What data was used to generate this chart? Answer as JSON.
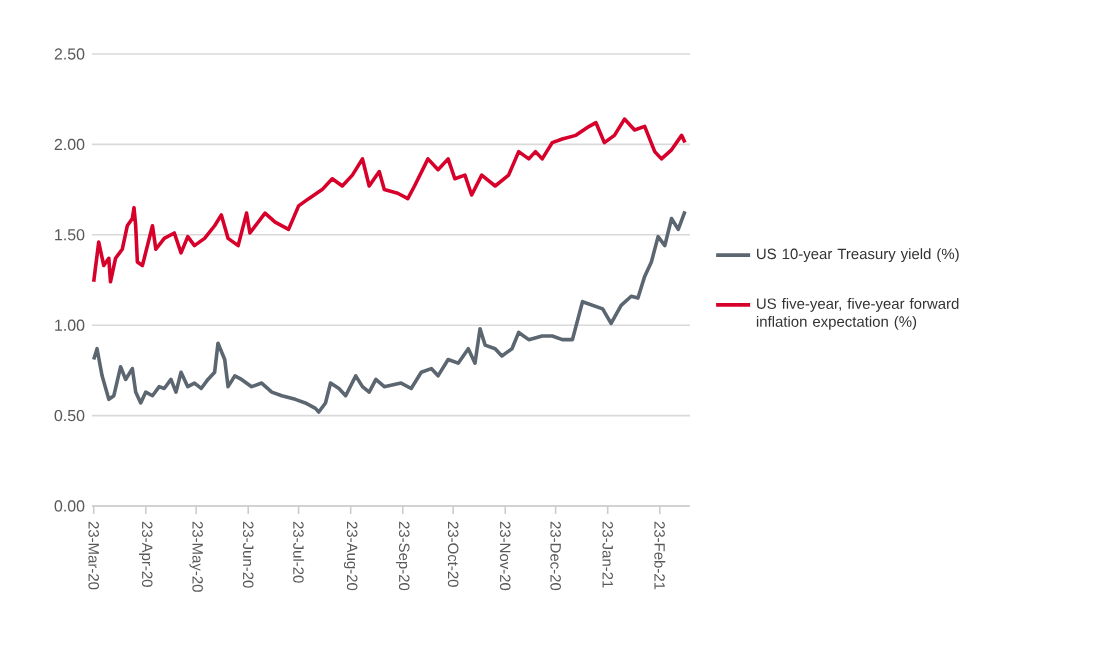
{
  "chart_data": {
    "type": "line",
    "xlim": [
      "2020-03-22",
      "2021-03-13"
    ],
    "xticks": [
      {
        "value": "2020-03-23",
        "label": "23-Mar-20"
      },
      {
        "value": "2020-04-23",
        "label": "23-Apr-20"
      },
      {
        "value": "2020-05-23",
        "label": "23-May-20"
      },
      {
        "value": "2020-06-23",
        "label": "23-Jun-20"
      },
      {
        "value": "2020-07-23",
        "label": "23-Jul-20"
      },
      {
        "value": "2020-08-23",
        "label": "23-Aug-20"
      },
      {
        "value": "2020-09-23",
        "label": "23-Sep-20"
      },
      {
        "value": "2020-10-23",
        "label": "23-Oct-20"
      },
      {
        "value": "2020-11-23",
        "label": "23-Nov-20"
      },
      {
        "value": "2020-12-23",
        "label": "23-Dec-20"
      },
      {
        "value": "2021-01-23",
        "label": "23-Jan-21"
      },
      {
        "value": "2021-02-23",
        "label": "23-Feb-21"
      }
    ],
    "ylim": [
      0,
      2.5
    ],
    "yticks": [
      {
        "value": 0,
        "label": "0.00"
      },
      {
        "value": 0.5,
        "label": "0.50"
      },
      {
        "value": 1,
        "label": "1.00"
      },
      {
        "value": 1.5,
        "label": "1.50"
      },
      {
        "value": 2,
        "label": "2.00"
      },
      {
        "value": 2.5,
        "label": "2.50"
      }
    ],
    "grid": "y",
    "legend": "right",
    "marker": "none",
    "line_style": "solid",
    "series": [
      {
        "name": "US 10-year Treasury yield (%)",
        "color": "#5b6670",
        "x": [
          "2020-03-23",
          "2020-03-25",
          "2020-03-28",
          "2020-04-01",
          "2020-04-04",
          "2020-04-08",
          "2020-04-11",
          "2020-04-15",
          "2020-04-17",
          "2020-04-20",
          "2020-04-23",
          "2020-04-27",
          "2020-05-01",
          "2020-05-04",
          "2020-05-08",
          "2020-05-11",
          "2020-05-14",
          "2020-05-18",
          "2020-05-22",
          "2020-05-26",
          "2020-05-30",
          "2020-06-03",
          "2020-06-05",
          "2020-06-09",
          "2020-06-11",
          "2020-06-15",
          "2020-06-19",
          "2020-06-25",
          "2020-07-01",
          "2020-07-07",
          "2020-07-13",
          "2020-07-21",
          "2020-07-27",
          "2020-08-02",
          "2020-08-04",
          "2020-08-08",
          "2020-08-11",
          "2020-08-16",
          "2020-08-20",
          "2020-08-26",
          "2020-08-30",
          "2020-09-03",
          "2020-09-07",
          "2020-09-12",
          "2020-09-22",
          "2020-09-28",
          "2020-10-04",
          "2020-10-10",
          "2020-10-14",
          "2020-10-20",
          "2020-10-26",
          "2020-11-01",
          "2020-11-05",
          "2020-11-08",
          "2020-11-11",
          "2020-11-17",
          "2020-11-21",
          "2020-11-27",
          "2020-12-01",
          "2020-12-07",
          "2020-12-15",
          "2020-12-21",
          "2020-12-27",
          "2021-01-02",
          "2021-01-08",
          "2021-01-14",
          "2021-01-20",
          "2021-01-25",
          "2021-01-31",
          "2021-02-06",
          "2021-02-10",
          "2021-02-14",
          "2021-02-18",
          "2021-02-22",
          "2021-02-26",
          "2021-03-02",
          "2021-03-06",
          "2021-03-10"
        ],
        "values": [
          0.81,
          0.87,
          0.72,
          0.59,
          0.61,
          0.77,
          0.7,
          0.76,
          0.63,
          0.57,
          0.63,
          0.61,
          0.66,
          0.65,
          0.7,
          0.63,
          0.74,
          0.66,
          0.68,
          0.65,
          0.7,
          0.74,
          0.9,
          0.81,
          0.66,
          0.72,
          0.7,
          0.66,
          0.68,
          0.63,
          0.61,
          0.59,
          0.57,
          0.54,
          0.52,
          0.57,
          0.68,
          0.65,
          0.61,
          0.72,
          0.66,
          0.63,
          0.7,
          0.66,
          0.68,
          0.65,
          0.74,
          0.76,
          0.72,
          0.81,
          0.79,
          0.87,
          0.79,
          0.98,
          0.89,
          0.87,
          0.83,
          0.87,
          0.96,
          0.92,
          0.94,
          0.94,
          0.92,
          0.92,
          1.13,
          1.11,
          1.09,
          1.01,
          1.11,
          1.16,
          1.15,
          1.27,
          1.35,
          1.49,
          1.44,
          1.59,
          1.53,
          1.63
        ]
      },
      {
        "name": "US five-year, five-year forward inflation expectation (%)",
        "color": "#d7002b",
        "x": [
          "2020-03-23",
          "2020-03-26",
          "2020-03-29",
          "2020-04-01",
          "2020-04-02",
          "2020-04-05",
          "2020-04-09",
          "2020-04-12",
          "2020-04-15",
          "2020-04-16",
          "2020-04-17",
          "2020-04-18",
          "2020-04-21",
          "2020-04-24",
          "2020-04-27",
          "2020-04-29",
          "2020-05-04",
          "2020-05-10",
          "2020-05-14",
          "2020-05-18",
          "2020-05-22",
          "2020-05-28",
          "2020-06-03",
          "2020-06-07",
          "2020-06-11",
          "2020-06-17",
          "2020-06-22",
          "2020-06-24",
          "2020-07-03",
          "2020-07-09",
          "2020-07-17",
          "2020-07-23",
          "2020-07-29",
          "2020-08-06",
          "2020-08-12",
          "2020-08-18",
          "2020-08-24",
          "2020-08-30",
          "2020-09-03",
          "2020-09-09",
          "2020-09-12",
          "2020-09-20",
          "2020-09-26",
          "2020-09-30",
          "2020-10-08",
          "2020-10-14",
          "2020-10-20",
          "2020-10-24",
          "2020-10-30",
          "2020-11-03",
          "2020-11-09",
          "2020-11-17",
          "2020-11-25",
          "2020-12-01",
          "2020-12-07",
          "2020-12-11",
          "2020-12-15",
          "2020-12-21",
          "2020-12-27",
          "2021-01-04",
          "2021-01-12",
          "2021-01-16",
          "2021-01-21",
          "2021-01-27",
          "2021-02-02",
          "2021-02-08",
          "2021-02-14",
          "2021-02-20",
          "2021-02-24",
          "2021-03-02",
          "2021-03-08",
          "2021-03-10"
        ],
        "values": [
          1.24,
          1.46,
          1.33,
          1.37,
          1.24,
          1.37,
          1.42,
          1.55,
          1.59,
          1.65,
          1.55,
          1.35,
          1.33,
          1.44,
          1.55,
          1.42,
          1.48,
          1.51,
          1.4,
          1.49,
          1.44,
          1.48,
          1.55,
          1.61,
          1.48,
          1.44,
          1.62,
          1.51,
          1.62,
          1.57,
          1.53,
          1.66,
          1.7,
          1.75,
          1.81,
          1.77,
          1.83,
          1.92,
          1.77,
          1.85,
          1.75,
          1.73,
          1.7,
          1.77,
          1.92,
          1.86,
          1.92,
          1.81,
          1.83,
          1.72,
          1.83,
          1.77,
          1.83,
          1.96,
          1.92,
          1.96,
          1.92,
          2.01,
          2.03,
          2.05,
          2.1,
          2.12,
          2.01,
          2.05,
          2.14,
          2.08,
          2.1,
          1.96,
          1.92,
          1.97,
          2.05,
          2.01
        ]
      }
    ]
  }
}
